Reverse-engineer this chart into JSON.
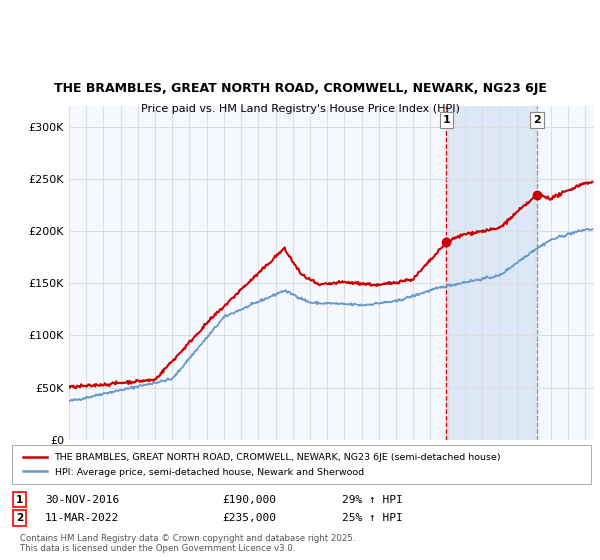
{
  "title_line1": "THE BRAMBLES, GREAT NORTH ROAD, CROMWELL, NEWARK, NG23 6JE",
  "title_line2": "Price paid vs. HM Land Registry's House Price Index (HPI)",
  "ylim": [
    0,
    320000
  ],
  "yticks": [
    0,
    50000,
    100000,
    150000,
    200000,
    250000,
    300000
  ],
  "ytick_labels": [
    "£0",
    "£50K",
    "£100K",
    "£150K",
    "£200K",
    "£250K",
    "£300K"
  ],
  "price_color": "#cc0000",
  "hpi_color": "#6699cc",
  "shade_color": "#dce8f5",
  "grid_color": "#dddddd",
  "bg_color": "#f5f8ff",
  "legend_price_label": "THE BRAMBLES, GREAT NORTH ROAD, CROMWELL, NEWARK, NG23 6JE (semi-detached house)",
  "legend_hpi_label": "HPI: Average price, semi-detached house, Newark and Sherwood",
  "annotation1_label": "1",
  "annotation1_date": "30-NOV-2016",
  "annotation1_price": "£190,000",
  "annotation1_pct": "29% ↑ HPI",
  "annotation2_label": "2",
  "annotation2_date": "11-MAR-2022",
  "annotation2_price": "£235,000",
  "annotation2_pct": "25% ↑ HPI",
  "marker1_year": 2016.92,
  "marker1_value": 190000,
  "marker2_year": 2022.19,
  "marker2_value": 235000,
  "xmin": 1995,
  "xmax": 2025.5,
  "footnote": "Contains HM Land Registry data © Crown copyright and database right 2025.\nThis data is licensed under the Open Government Licence v3.0."
}
